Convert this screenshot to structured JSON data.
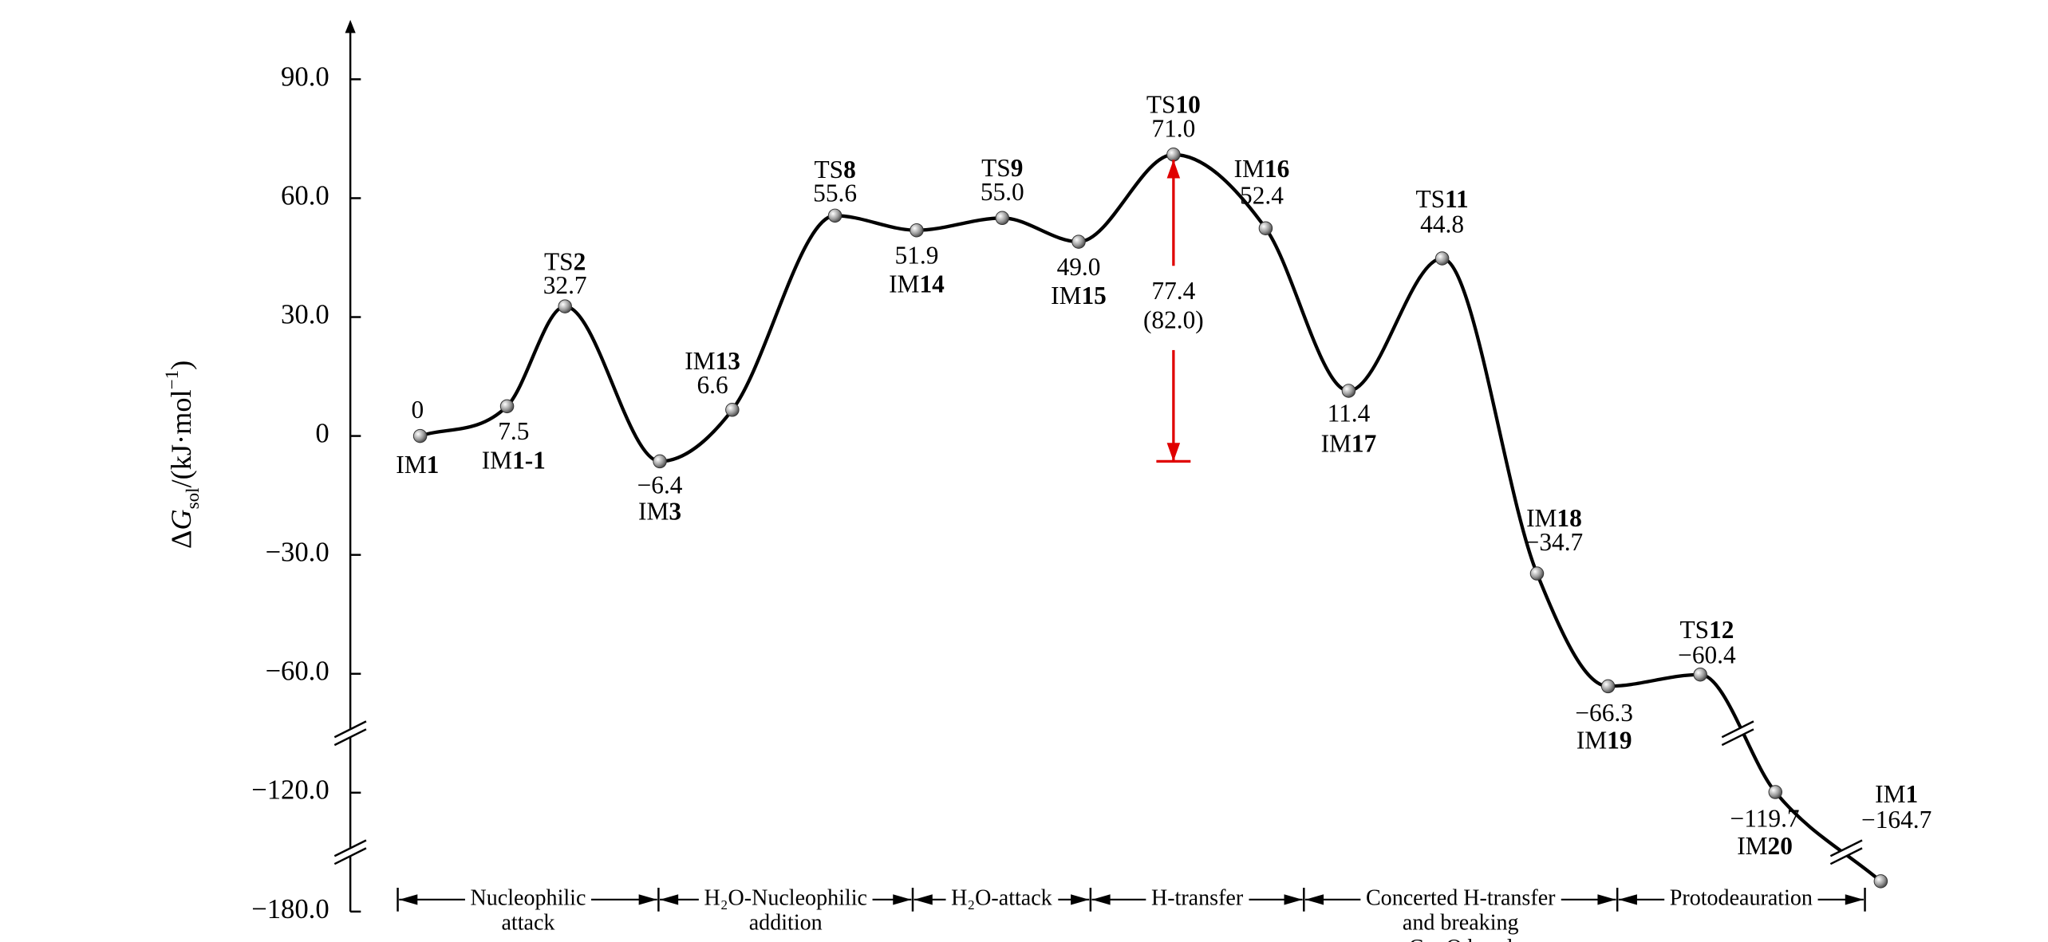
{
  "chart_data": {
    "type": "energy-profile",
    "ylabel": "ΔGsol/(kJ·mol−1)",
    "ylim": [
      -180,
      105
    ],
    "yticks": [
      {
        "value": 90,
        "label": "90.0"
      },
      {
        "value": 60,
        "label": "60.0"
      },
      {
        "value": 30,
        "label": "30.0"
      },
      0,
      {
        "value": -30,
        "label": "−30.0"
      },
      {
        "value": -60,
        "label": "−60.0"
      },
      {
        "value": -120,
        "label": "−120.0"
      },
      {
        "value": -180,
        "label": "−180.0"
      }
    ],
    "categories": [
      "IM1",
      "IM1-1",
      "TS2",
      "IM3",
      "IM13",
      "TS8",
      "IM14",
      "TS9",
      "IM15",
      "TS10",
      "IM16",
      "IM17",
      "TS11",
      "IM18",
      "IM19",
      "TS12",
      "IM20",
      "IM1"
    ],
    "values": [
      0,
      7.5,
      32.7,
      -6.4,
      6.6,
      55.6,
      51.9,
      55.0,
      49.0,
      71.0,
      52.4,
      11.4,
      44.8,
      -34.7,
      -66.3,
      -60.4,
      -119.7,
      -164.7
    ],
    "value_labels": [
      "0",
      "7.5",
      "32.7",
      "−6.4",
      "6.6",
      "55.6",
      "51.9",
      "55.0",
      "49.0",
      "71.0",
      "52.4",
      "11.4",
      "44.8",
      "−34.7",
      "−66.3",
      "−60.4",
      "−119.7",
      "−164.7"
    ],
    "color": "#000000",
    "marker_color": "#9a9a9a",
    "barrier": {
      "value": 77.4,
      "note": "(82.0)",
      "color": "#e00000"
    },
    "stages": [
      [
        "Nucleophilic",
        "attack"
      ],
      [
        "H₂O-Nucleophilic",
        "addition"
      ],
      [
        "H₂O-attack"
      ],
      [
        "H-transfer"
      ],
      [
        "Concerted H-transfer",
        "and breaking",
        "C—O bond"
      ],
      [
        "Protodeauration"
      ]
    ]
  }
}
